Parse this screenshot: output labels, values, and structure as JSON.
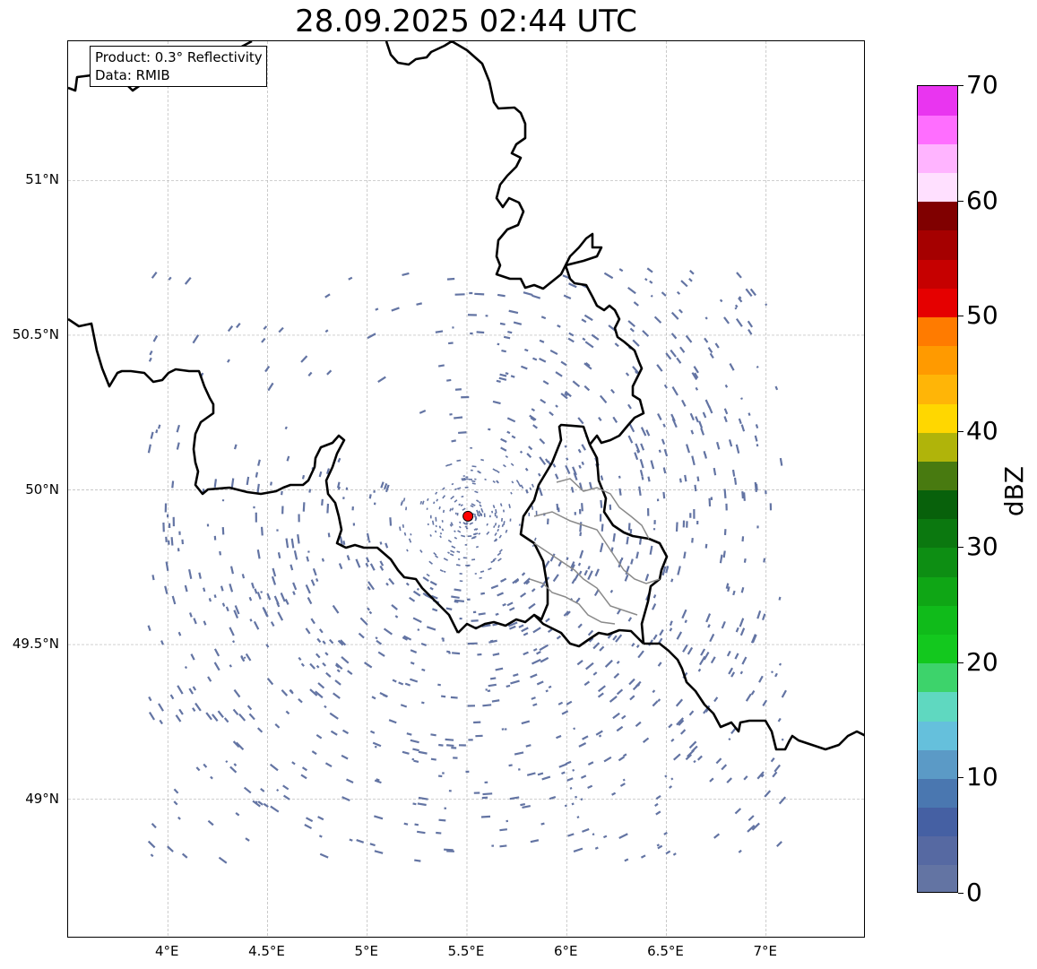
{
  "title": "28.09.2025 02:44 UTC",
  "info_box": {
    "product": "Product: 0.3° Reflectivity",
    "data": "Data: RMIB"
  },
  "map": {
    "lon_range": [
      3.5,
      7.5
    ],
    "lat_range": [
      48.55,
      51.45
    ],
    "x_ticks": [
      {
        "value": 4.0,
        "label": "4°E"
      },
      {
        "value": 4.5,
        "label": "4.5°E"
      },
      {
        "value": 5.0,
        "label": "5°E"
      },
      {
        "value": 5.5,
        "label": "5.5°E"
      },
      {
        "value": 6.0,
        "label": "6°E"
      },
      {
        "value": 6.5,
        "label": "6.5°E"
      },
      {
        "value": 7.0,
        "label": "7°E"
      }
    ],
    "y_ticks": [
      {
        "value": 49.0,
        "label": "49°N"
      },
      {
        "value": 49.5,
        "label": "49.5°N"
      },
      {
        "value": 50.0,
        "label": "50°N"
      },
      {
        "value": 50.5,
        "label": "50.5°N"
      },
      {
        "value": 51.0,
        "label": "51°N"
      }
    ],
    "gridlines": true,
    "radar_site": {
      "lon": 5.505,
      "lat": 49.915,
      "color": "#ff0000"
    },
    "echo_color": "#6374a3",
    "echo_max_range_km": 240,
    "border_color": "#000000",
    "internal_border_color": "#808080"
  },
  "colorbar": {
    "label": "dBZ",
    "min": 0,
    "max": 70,
    "ticks": [
      "0",
      "10",
      "20",
      "30",
      "40",
      "50",
      "60",
      "70"
    ],
    "colors": [
      "#6374a3",
      "#5669a2",
      "#4560a3",
      "#4a77b0",
      "#5b9ac6",
      "#65c0dc",
      "#5fd8c0",
      "#3dd36b",
      "#13c81e",
      "#10bb1a",
      "#0fa615",
      "#0d8e13",
      "#0b780f",
      "#08610b",
      "#487a10",
      "#b0b40a",
      "#ffd700",
      "#ffb507",
      "#ff9a00",
      "#ff7b00",
      "#e50000",
      "#c60000",
      "#a50000",
      "#800000",
      "#ffe0ff",
      "#ffb4ff",
      "#ff6eff",
      "#e935f0"
    ]
  }
}
